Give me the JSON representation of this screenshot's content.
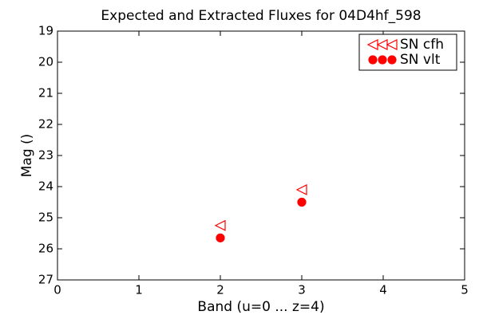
{
  "chart_data": {
    "type": "scatter",
    "title": "Expected and Extracted Fluxes for 04D4hf_598",
    "title_color": "#ff0000",
    "x_label": "Band (u=0 ... z=4)",
    "y_label": "Mag ()",
    "xlim": [
      0,
      5
    ],
    "xticks": [
      0,
      1,
      2,
      3,
      4,
      5
    ],
    "ylim": [
      19,
      27
    ],
    "yticks": [
      19,
      20,
      21,
      22,
      23,
      24,
      25,
      26,
      27
    ],
    "y_inverted": true,
    "legend": "upper right",
    "series": [
      {
        "name": "SN cfh",
        "color": "#ff0000",
        "marker": "<",
        "filled": false,
        "x": [
          2,
          3
        ],
        "values": [
          25.25,
          24.1
        ]
      },
      {
        "name": "SN vlt",
        "color": "#ff0000",
        "marker": "o",
        "filled": true,
        "x": [
          2,
          3
        ],
        "values": [
          25.65,
          24.5
        ]
      }
    ]
  }
}
